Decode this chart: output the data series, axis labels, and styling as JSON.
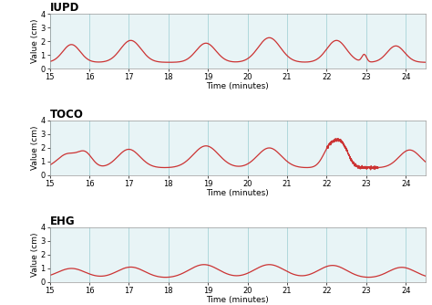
{
  "title_iupd": "IUPD",
  "title_toco": "TOCO",
  "title_ehg": "EHG",
  "xlabel": "Time (minutes)",
  "ylabel": "Value (cm)",
  "xlim": [
    15,
    24.5
  ],
  "ylim": [
    0,
    4
  ],
  "yticks": [
    0,
    1,
    2,
    3,
    4
  ],
  "xticks": [
    15,
    16,
    17,
    18,
    19,
    20,
    21,
    22,
    23,
    24
  ],
  "line_color": "#cc3333",
  "grid_color": "#b0d8dc",
  "bg_color": "#e8f4f6",
  "fig_bg": "#ffffff",
  "line_width": 0.9,
  "title_fontsize": 8.5,
  "label_fontsize": 6.5,
  "tick_fontsize": 6.0
}
